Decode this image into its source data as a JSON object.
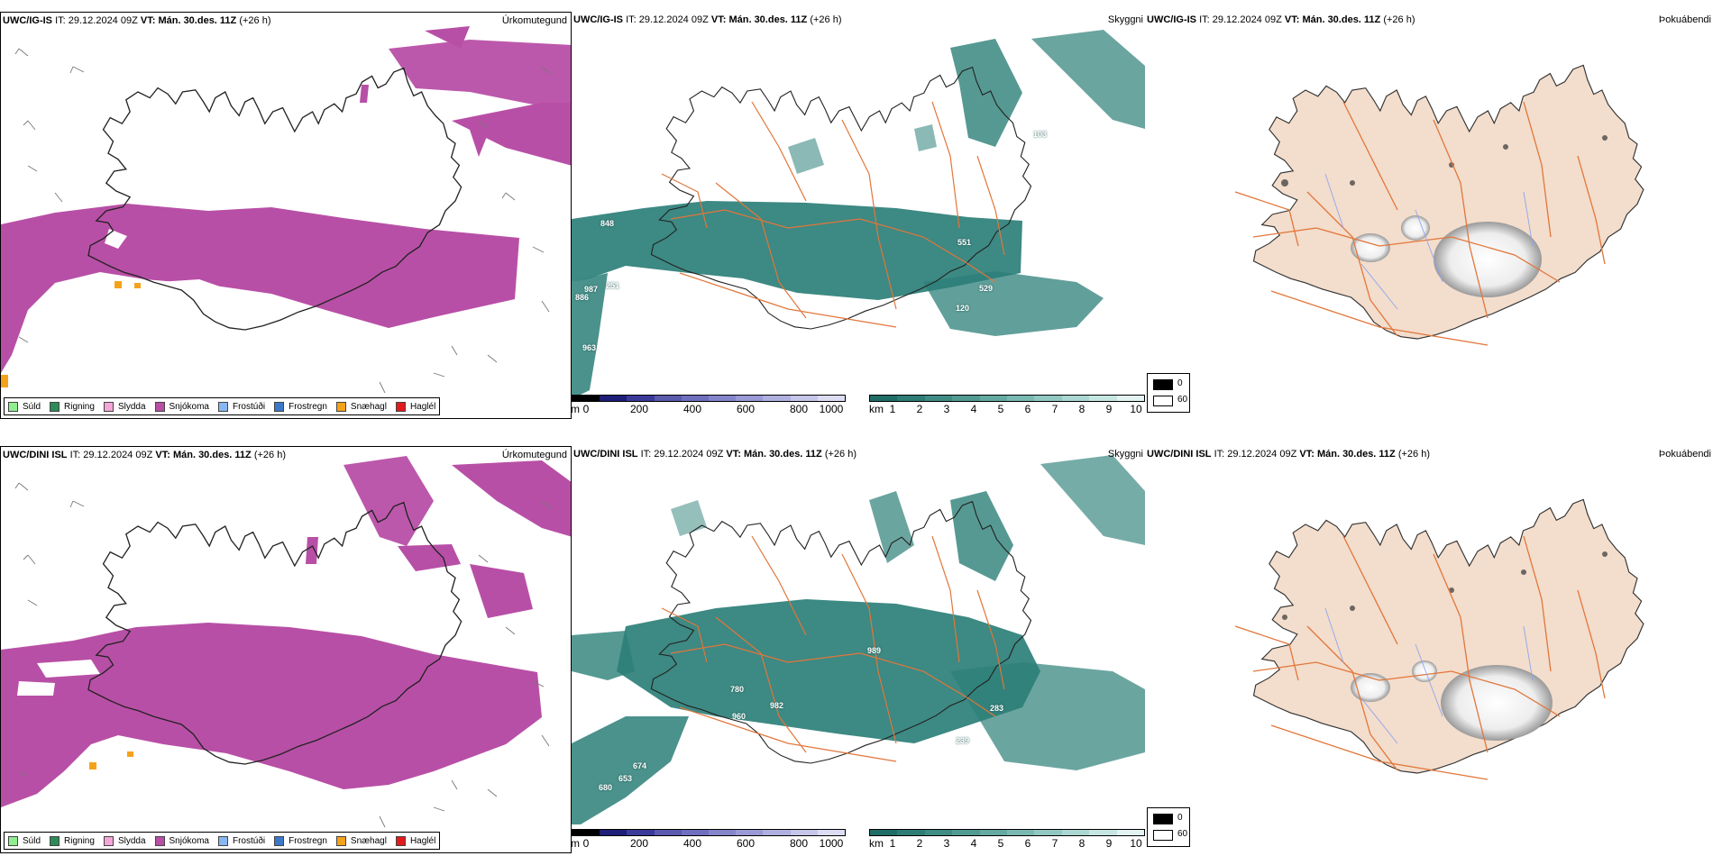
{
  "rows": [
    {
      "model": "UWC/IG-IS",
      "it": "29.12.2024 09Z",
      "vt": "Mán. 30.des. 11Z",
      "lead": "(+26 h)",
      "numbers": [
        "848",
        "987",
        "251",
        "886",
        "963",
        "551",
        "529",
        "120",
        "103"
      ]
    },
    {
      "model": "UWC/DINI ISL",
      "it": "29.12.2024 09Z",
      "vt": "Mán. 30.des. 11Z",
      "lead": "(+26 h)",
      "numbers": [
        "989",
        "780",
        "982",
        "960",
        "283",
        "239",
        "674",
        "653",
        "680"
      ]
    }
  ],
  "labels": {
    "it_prefix": "IT:",
    "vt_prefix": "VT:"
  },
  "panel_titles": {
    "precip_type": "Úrkomutegund",
    "visibility": "Skyggni",
    "fog": "Þokuábendi"
  },
  "precip_legend": [
    {
      "label": "Súld",
      "color": "#90ee90"
    },
    {
      "label": "Rigning",
      "color": "#2e8b57"
    },
    {
      "label": "Slydda",
      "color": "#f4a6d8"
    },
    {
      "label": "Snjókoma",
      "color": "#b84fa6"
    },
    {
      "label": "Frostúði",
      "color": "#87b8f0"
    },
    {
      "label": "Frostregn",
      "color": "#3d78c8"
    },
    {
      "label": "Snæhagl",
      "color": "#f4a21b"
    },
    {
      "label": "Haglél",
      "color": "#e31a1c"
    }
  ],
  "height_bar": {
    "unit": "m",
    "ticks": [
      "0",
      "200",
      "400",
      "600",
      "800",
      "1000"
    ],
    "colors": [
      "#000000",
      "#1e1e78",
      "#3a3a9a",
      "#5a5aae",
      "#6f6fbf",
      "#8585cc",
      "#9a9ad6",
      "#b0b0e0",
      "#c6c6ea",
      "#dcdcf3"
    ]
  },
  "vis_bar": {
    "unit": "km",
    "ticks": [
      "1",
      "2",
      "3",
      "4",
      "5",
      "6",
      "7",
      "8",
      "9",
      "10"
    ],
    "colors": [
      "#1f6e66",
      "#2e7d75",
      "#3f8c84",
      "#519b93",
      "#65aaa2",
      "#7ab9b2",
      "#92c8c2",
      "#abd7d2",
      "#c6e6e2",
      "#e2f3f1"
    ]
  },
  "fog_legend": {
    "black_value": "0",
    "white_value": "60"
  },
  "colors": {
    "snow": "#b84fa6",
    "teal": "#2c7f78",
    "land": "#f3ddcc",
    "roads": "#e2763a"
  }
}
